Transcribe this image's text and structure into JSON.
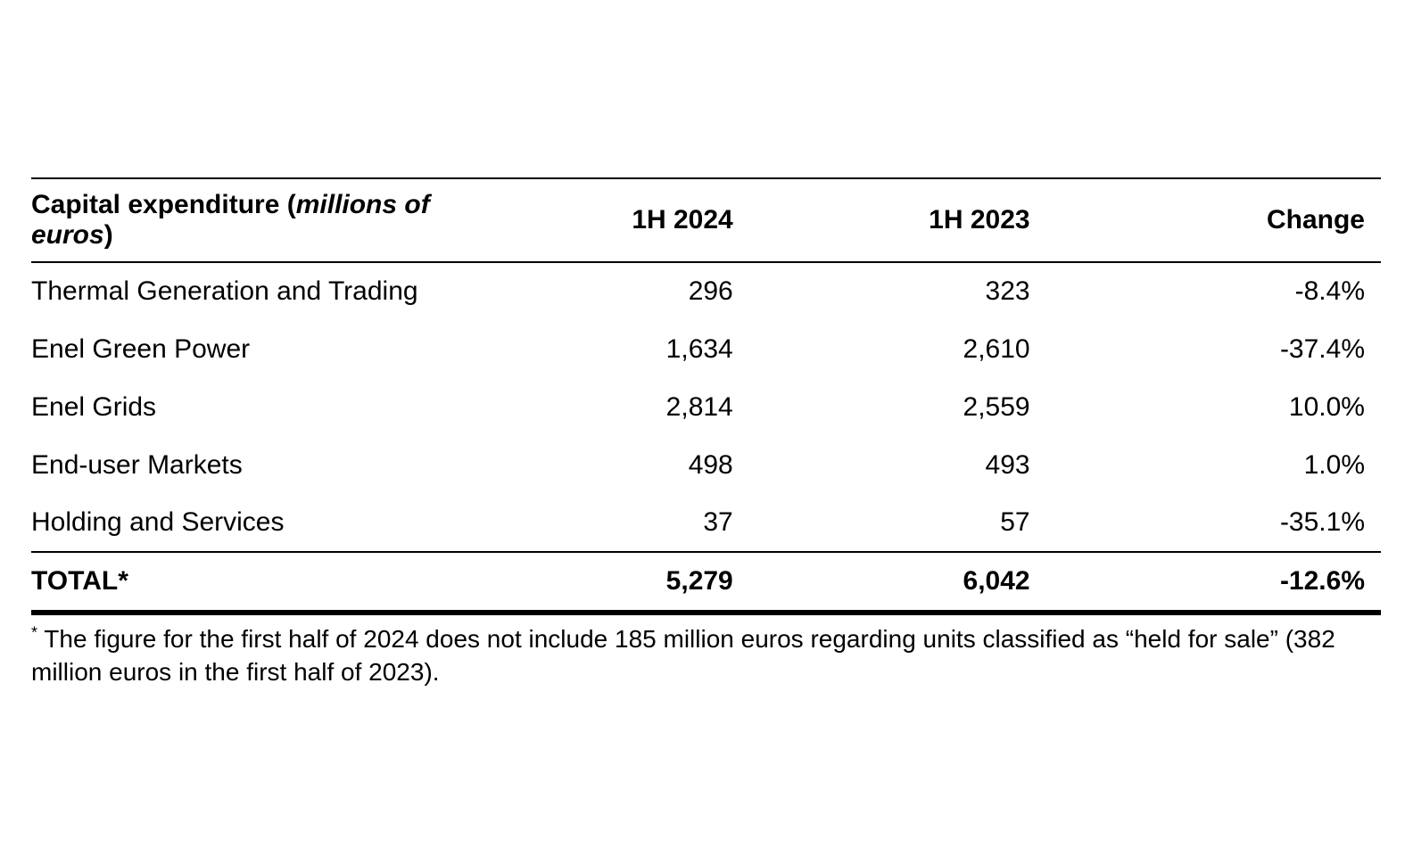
{
  "table": {
    "header": {
      "title_prefix": "Capital expenditure (",
      "title_italic": "millions of euros",
      "title_suffix": ")",
      "col_2024": "1H 2024",
      "col_2023": "1H 2023",
      "col_change": "Change"
    },
    "rows": [
      {
        "label": "Thermal Generation and Trading",
        "h1_2024": "296",
        "h1_2023": "323",
        "change": "-8.4%"
      },
      {
        "label": "Enel Green Power",
        "h1_2024": "1,634",
        "h1_2023": "2,610",
        "change": "-37.4%"
      },
      {
        "label": "Enel Grids",
        "h1_2024": "2,814",
        "h1_2023": "2,559",
        "change": "10.0%"
      },
      {
        "label": "End-user Markets",
        "h1_2024": "498",
        "h1_2023": "493",
        "change": "1.0%"
      },
      {
        "label": "Holding and Services",
        "h1_2024": "37",
        "h1_2023": "57",
        "change": "-35.1%"
      }
    ],
    "total": {
      "label": "TOTAL*",
      "h1_2024": "5,279",
      "h1_2023": "6,042",
      "change": "-12.6%"
    }
  },
  "footnote": {
    "marker": "*",
    "text": "The figure for the first half of 2024 does not include 185 million euros regarding units classified as “held for sale” (382 million euros in the first half of 2023)."
  }
}
